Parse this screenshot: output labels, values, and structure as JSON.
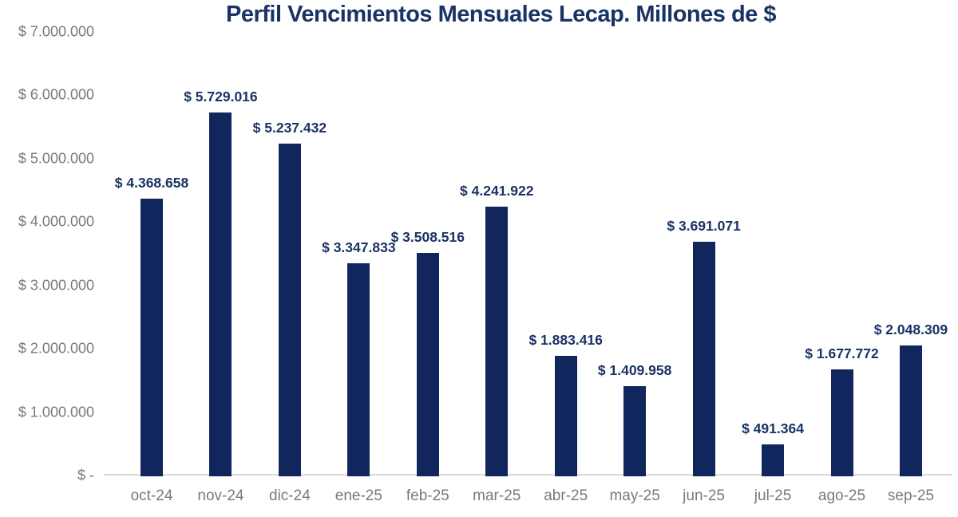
{
  "chart_data": {
    "type": "bar",
    "title": "Perfil Vencimientos Mensuales Lecap. Millones de $",
    "xlabel": "",
    "ylabel": "",
    "ylim": [
      0,
      7000000
    ],
    "grid": false,
    "legend": "none",
    "bar_color": "#12265e",
    "label_color": "#1b3264",
    "axis_text_color": "#7a7a7a",
    "axis_line_color": "#d9d9d9",
    "categories": [
      "oct-24",
      "nov-24",
      "dic-24",
      "ene-25",
      "feb-25",
      "mar-25",
      "abr-25",
      "may-25",
      "jun-25",
      "jul-25",
      "ago-25",
      "sep-25"
    ],
    "values": [
      4368658,
      5729016,
      5237432,
      3347833,
      3508516,
      4241922,
      1883416,
      1409958,
      3691071,
      491364,
      1677772,
      2048309
    ],
    "data_labels": [
      "$ 4.368.658",
      "$ 5.729.016",
      "$ 5.237.432",
      "$ 3.347.833",
      "$ 3.508.516",
      "$ 4.241.922",
      "$ 1.883.416",
      "$ 1.409.958",
      "$ 3.691.071",
      "$ 491.364",
      "$ 1.677.772",
      "$ 2.048.309"
    ],
    "y_axis_ticks": [
      {
        "label": "$ 7.000.000",
        "value": 7000000
      },
      {
        "label": "$ 6.000.000",
        "value": 6000000
      },
      {
        "label": "$ 5.000.000",
        "value": 5000000
      },
      {
        "label": "$ 4.000.000",
        "value": 4000000
      },
      {
        "label": "$ 3.000.000",
        "value": 3000000
      },
      {
        "label": "$ 2.000.000",
        "value": 2000000
      },
      {
        "label": "$ 1.000.000",
        "value": 1000000
      },
      {
        "label": "$ -",
        "value": 0
      }
    ]
  }
}
